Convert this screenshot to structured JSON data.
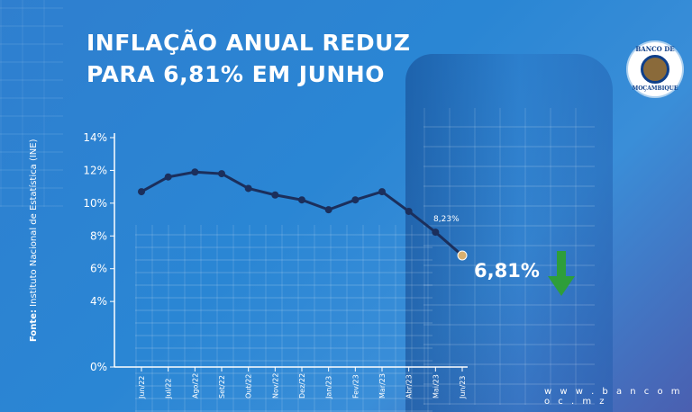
{
  "title": {
    "line1": "INFLAÇÃO ANUAL REDUZ",
    "line2": "PARA 6,81% EM JUNHO"
  },
  "source": {
    "label": "Fonte:",
    "text": "Instituto Nacional de Estatística (INE)"
  },
  "website": "w w w . b a n c o m o c . m z",
  "logo": {
    "top_text": "BANCO DE",
    "bottom_text": "MOÇAMBIQUE",
    "icon": "bank-seal-logo"
  },
  "highlight": {
    "value_label": "6,81%",
    "prev_label": "8,23%",
    "arrow_icon": "down-arrow-icon",
    "arrow_color": "#2e9e3a",
    "point_color": "#d8b070"
  },
  "chart_data": {
    "type": "line",
    "categories": [
      "Jun/22",
      "Jul/22",
      "Ago/22",
      "Set/22",
      "Out/22",
      "Nov/22",
      "Dez/22",
      "Jan/23",
      "Fev/23",
      "Mar/23",
      "Abr/23",
      "Mai/23",
      "Jun/23"
    ],
    "series": [
      {
        "values": [
          10.7,
          11.6,
          11.9,
          11.8,
          10.9,
          10.5,
          10.2,
          9.6,
          10.2,
          10.7,
          9.5,
          8.23,
          6.81
        ]
      }
    ],
    "yticks": [
      "0%",
      "4%",
      "6%",
      "8%",
      "10%",
      "12%",
      "14%"
    ],
    "ylim": [
      0,
      14
    ],
    "line_color": "#1b2f5c",
    "grid": false
  }
}
